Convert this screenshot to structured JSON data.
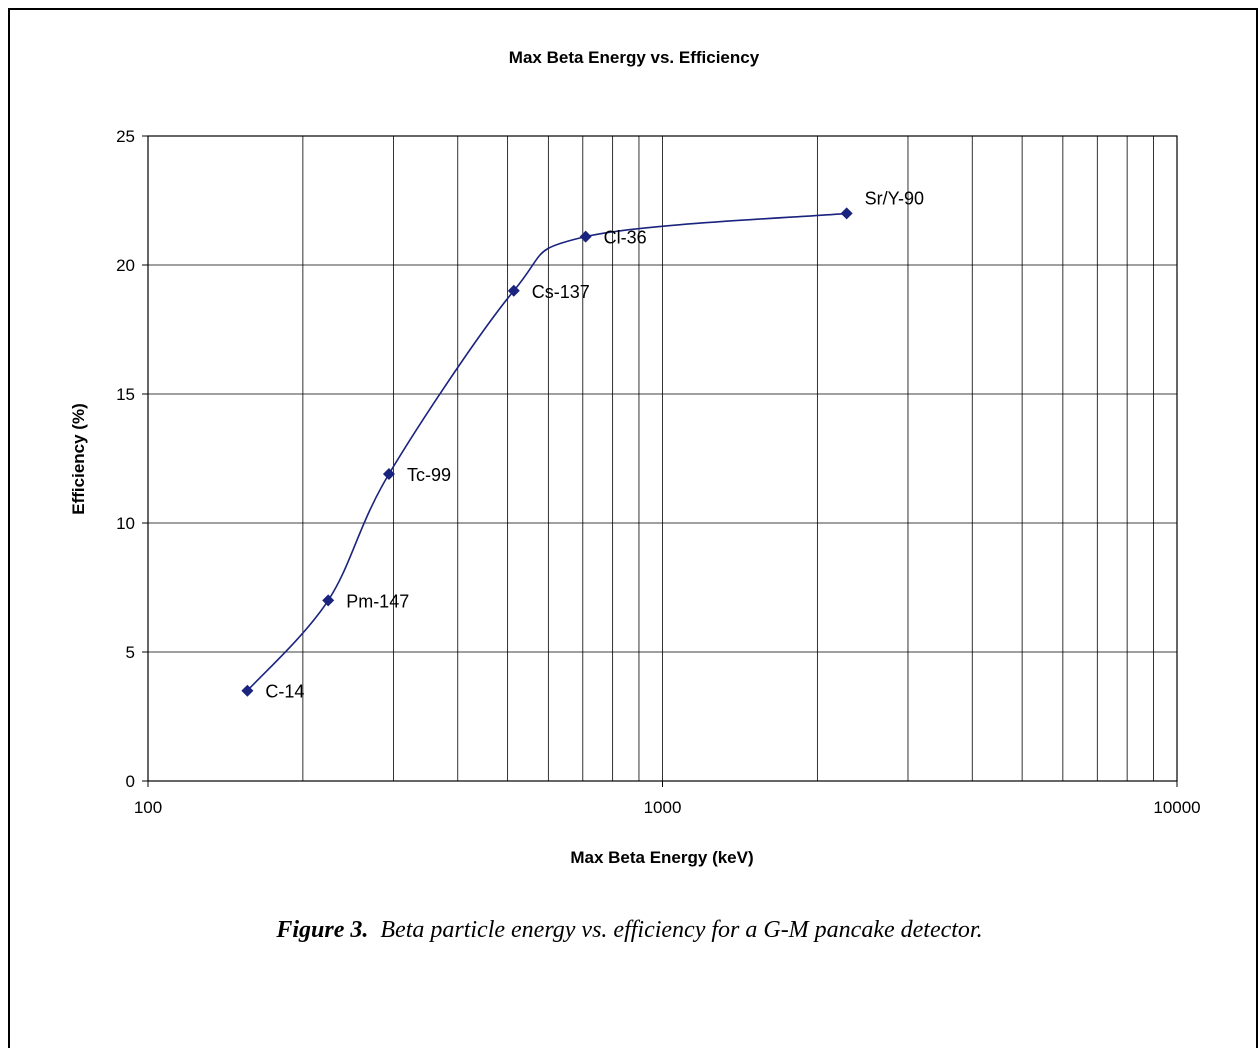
{
  "chart_data": {
    "type": "line",
    "title": "Max Beta Energy vs. Efficiency",
    "xlabel": "Max Beta Energy (keV)",
    "ylabel": "Efficiency (%)",
    "xscale": "log",
    "xlim": [
      100,
      10000
    ],
    "ylim": [
      0,
      25
    ],
    "xticks": [
      "100",
      "1000",
      "10000"
    ],
    "yticks": [
      "0",
      "5",
      "10",
      "15",
      "20",
      "25"
    ],
    "grid": true,
    "line_color": "#1a237e",
    "marker_color": "#1a237e",
    "points": [
      {
        "label": "C-14",
        "x": 156,
        "y": 3.5
      },
      {
        "label": "Pm-147",
        "x": 224,
        "y": 7.0
      },
      {
        "label": "Tc-99",
        "x": 294,
        "y": 11.9
      },
      {
        "label": "Cs-137",
        "x": 514,
        "y": 19.0
      },
      {
        "label": "Cl-36",
        "x": 709,
        "y": 21.1
      },
      {
        "label": "Sr/Y-90",
        "x": 2280,
        "y": 22.0
      }
    ]
  },
  "caption": {
    "figure": "Figure 3.",
    "text": "Beta particle energy vs. efficiency for a G-M pancake detector."
  }
}
